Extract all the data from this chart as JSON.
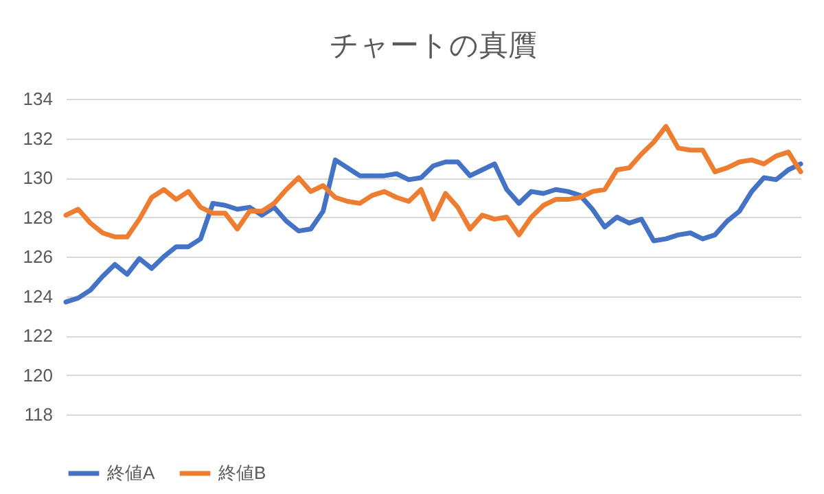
{
  "chart_data": {
    "type": "line",
    "title": "チャートの真贋",
    "categories": [
      null,
      null,
      null,
      null,
      null,
      null,
      null,
      null,
      null,
      null,
      null,
      null,
      null,
      null,
      null,
      null,
      null,
      null,
      null,
      null,
      null,
      null,
      null,
      null,
      null,
      null,
      null,
      null,
      null,
      null,
      null,
      null,
      null,
      null,
      null,
      null,
      null,
      null,
      null,
      null,
      null,
      null,
      null,
      null,
      null,
      null,
      null,
      null,
      null,
      null,
      null,
      null,
      null,
      null,
      null,
      null,
      null,
      null,
      null,
      null,
      null
    ],
    "series": [
      {
        "name": "終値A",
        "color": "#4472c4",
        "values": [
          123.7,
          123.9,
          124.3,
          125.0,
          125.6,
          125.1,
          125.9,
          125.4,
          126.0,
          126.5,
          126.5,
          126.9,
          128.7,
          128.6,
          128.4,
          128.5,
          128.1,
          128.5,
          127.8,
          127.3,
          127.4,
          128.3,
          130.9,
          130.5,
          130.1,
          130.1,
          130.1,
          130.2,
          129.9,
          130.0,
          130.6,
          130.8,
          130.8,
          130.1,
          130.4,
          130.7,
          129.4,
          128.7,
          129.3,
          129.2,
          129.4,
          129.3,
          129.1,
          128.4,
          127.5,
          128.0,
          127.7,
          127.9,
          126.8,
          126.9,
          127.1,
          127.2,
          126.9,
          127.1,
          127.8,
          128.3,
          129.3,
          130.0,
          129.9,
          130.4,
          130.7
        ]
      },
      {
        "name": "終値B",
        "color": "#ed7d31",
        "values": [
          128.1,
          128.4,
          127.7,
          127.2,
          127.0,
          127.0,
          127.9,
          129.0,
          129.4,
          128.9,
          129.3,
          128.5,
          128.2,
          128.2,
          127.4,
          128.3,
          128.3,
          128.7,
          129.4,
          130.0,
          129.3,
          129.6,
          129.0,
          128.8,
          128.7,
          129.1,
          129.3,
          129.0,
          128.8,
          129.4,
          127.9,
          129.2,
          128.5,
          127.4,
          128.1,
          127.9,
          128.0,
          127.1,
          128.0,
          128.6,
          128.9,
          128.9,
          129.0,
          129.3,
          129.4,
          130.4,
          130.5,
          131.2,
          131.8,
          132.6,
          131.5,
          131.4,
          131.4,
          130.3,
          130.5,
          130.8,
          130.9,
          130.7,
          131.1,
          131.3,
          130.3
        ]
      }
    ],
    "ylim": [
      118,
      134
    ],
    "yticks": [
      118,
      120,
      122,
      124,
      126,
      128,
      130,
      132,
      134
    ],
    "grid": "y",
    "legend": "bottom",
    "tick_labels": "y"
  }
}
